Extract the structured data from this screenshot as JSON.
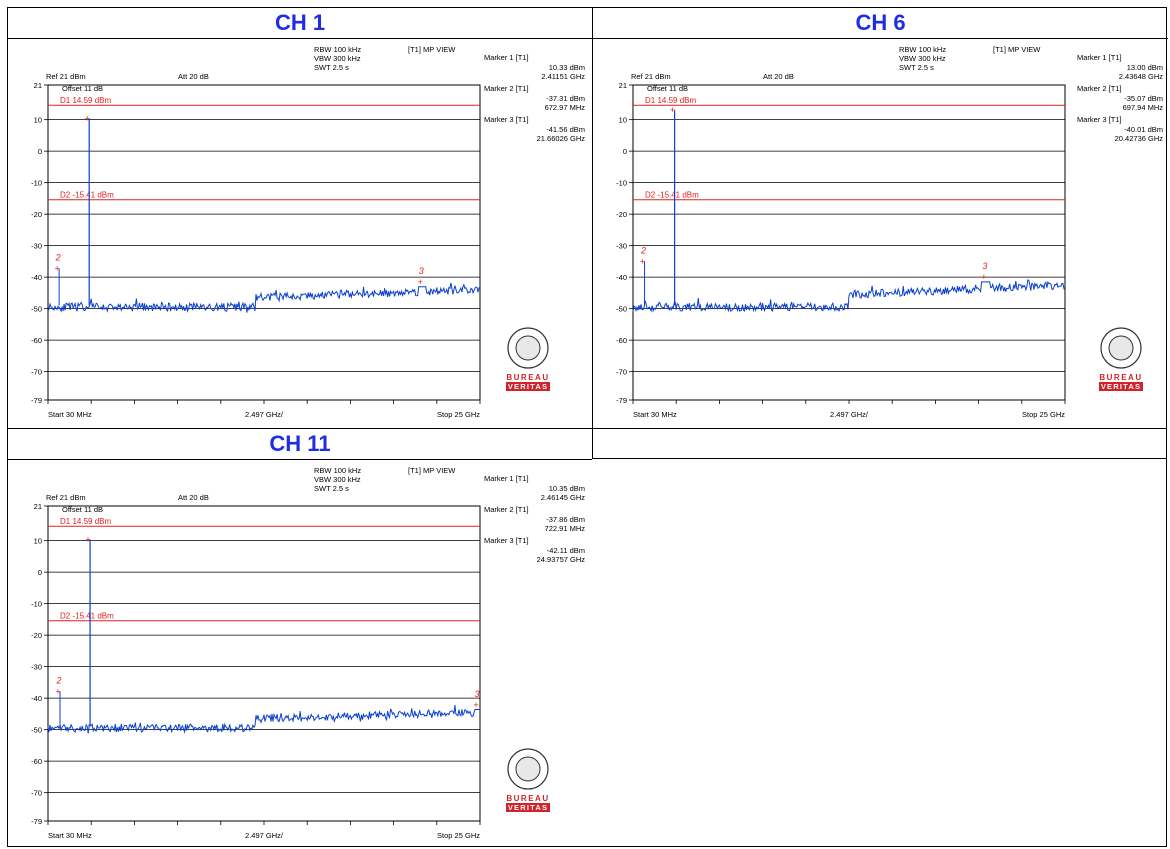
{
  "panels_layout": "2x2 table, bottom-right empty",
  "colors": {
    "header": "#1e2ee0",
    "trace": "#0a3fd0",
    "limit": "#e02020",
    "grid": "#000000",
    "logo_red": "#d0232a"
  },
  "logo": {
    "line1": "BUREAU",
    "line2": "VERITAS"
  },
  "chart_data": [
    {
      "type": "line",
      "title": "CH 1",
      "settings": {
        "rbw": "RBW 100 kHz",
        "vbw": "VBW 300 kHz",
        "swt": "SWT 2.5 s",
        "view": "[T1] MP VIEW",
        "ref": "Ref 21 dBm",
        "att": "Att 20 dB",
        "offset": "Offset 11 dB"
      },
      "limits": [
        {
          "label": "D1 14.59 dBm",
          "value": 14.59
        },
        {
          "label": "D2 -15.41 dBm",
          "value": -15.41
        }
      ],
      "markers": [
        {
          "id": "1",
          "title": "Marker 1 [T1]",
          "level": "10.33 dBm",
          "freq": "2.41151 GHz",
          "x": 2.41151,
          "y": 10.33
        },
        {
          "id": "2",
          "title": "Marker 2 [T1]",
          "level": "-37.31 dBm",
          "freq": "672.97 MHz",
          "x": 0.67297,
          "y": -37.31
        },
        {
          "id": "3",
          "title": "Marker 3 [T1]",
          "level": "-41.56 dBm",
          "freq": "21.66026 GHz",
          "x": 21.66026,
          "y": -41.56
        }
      ],
      "yticks": [
        "21",
        "10",
        "0",
        "-10",
        "-20",
        "-30",
        "-40",
        "-50",
        "-60",
        "-70",
        "-79"
      ],
      "ylim": [
        -79,
        21
      ],
      "xlim": [
        0.03,
        25
      ],
      "x_start_label": "Start 30 MHz",
      "x_div_label": "2.497 GHz/",
      "x_stop_label": "Stop 25 GHz",
      "noise_floor": [
        {
          "x0": 0.03,
          "x1": 12.0,
          "level": -49.5
        },
        {
          "x0": 12.0,
          "x1": 25.0,
          "level": -46.5,
          "rise_to": -44.0
        }
      ]
    },
    {
      "type": "line",
      "title": "CH 6",
      "settings": {
        "rbw": "RBW 100 kHz",
        "vbw": "VBW 300 kHz",
        "swt": "SWT 2.5 s",
        "view": "[T1] MP VIEW",
        "ref": "Ref 21 dBm",
        "att": "Att 20 dB",
        "offset": "Offset 11 dB"
      },
      "limits": [
        {
          "label": "D1 14.59 dBm",
          "value": 14.59
        },
        {
          "label": "D2 -15.41 dBm",
          "value": -15.41
        }
      ],
      "markers": [
        {
          "id": "1",
          "title": "Marker 1 [T1]",
          "level": "13.00 dBm",
          "freq": "2.43648 GHz",
          "x": 2.43648,
          "y": 13.0
        },
        {
          "id": "2",
          "title": "Marker 2 [T1]",
          "level": "-35.07 dBm",
          "freq": "697.94 MHz",
          "x": 0.69794,
          "y": -35.07
        },
        {
          "id": "3",
          "title": "Marker 3 [T1]",
          "level": "-40.01 dBm",
          "freq": "20.42736 GHz",
          "x": 20.42736,
          "y": -40.01
        }
      ],
      "yticks": [
        "21",
        "10",
        "0",
        "-10",
        "-20",
        "-30",
        "-40",
        "-50",
        "-60",
        "-70",
        "-79"
      ],
      "ylim": [
        -79,
        21
      ],
      "xlim": [
        0.03,
        25
      ],
      "x_start_label": "Start 30 MHz",
      "x_div_label": "2.497 GHz/",
      "x_stop_label": "Stop 25 GHz",
      "noise_floor": [
        {
          "x0": 0.03,
          "x1": 12.5,
          "level": -49.5
        },
        {
          "x0": 12.5,
          "x1": 25.0,
          "level": -45.5,
          "rise_to": -42.5
        }
      ]
    },
    {
      "type": "line",
      "title": "CH 11",
      "settings": {
        "rbw": "RBW 100 kHz",
        "vbw": "VBW 300 kHz",
        "swt": "SWT 2.5 s",
        "view": "[T1] MP VIEW",
        "ref": "Ref 21 dBm",
        "att": "Att 20 dB",
        "offset": "Offset 11 dB"
      },
      "limits": [
        {
          "label": "D1 14.59 dBm",
          "value": 14.59
        },
        {
          "label": "D2 -15.41 dBm",
          "value": -15.41
        }
      ],
      "markers": [
        {
          "id": "1",
          "title": "Marker 1 [T1]",
          "level": "10.35 dBm",
          "freq": "2.46145 GHz",
          "x": 2.46145,
          "y": 10.35
        },
        {
          "id": "2",
          "title": "Marker 2 [T1]",
          "level": "-37.86 dBm",
          "freq": "722.91 MHz",
          "x": 0.72291,
          "y": -37.86
        },
        {
          "id": "3",
          "title": "Marker 3 [T1]",
          "level": "-42.11 dBm",
          "freq": "24.93757 GHz",
          "x": 24.93757,
          "y": -42.11
        }
      ],
      "yticks": [
        "21",
        "10",
        "0",
        "-10",
        "-20",
        "-30",
        "-40",
        "-50",
        "-60",
        "-70",
        "-79"
      ],
      "ylim": [
        -79,
        21
      ],
      "xlim": [
        0.03,
        25
      ],
      "x_start_label": "Start 30 MHz",
      "x_div_label": "2.497 GHz/",
      "x_stop_label": "Stop 25 GHz",
      "noise_floor": [
        {
          "x0": 0.03,
          "x1": 12.0,
          "level": -49.5
        },
        {
          "x0": 12.0,
          "x1": 25.0,
          "level": -46.5,
          "rise_to": -44.5
        }
      ]
    }
  ]
}
